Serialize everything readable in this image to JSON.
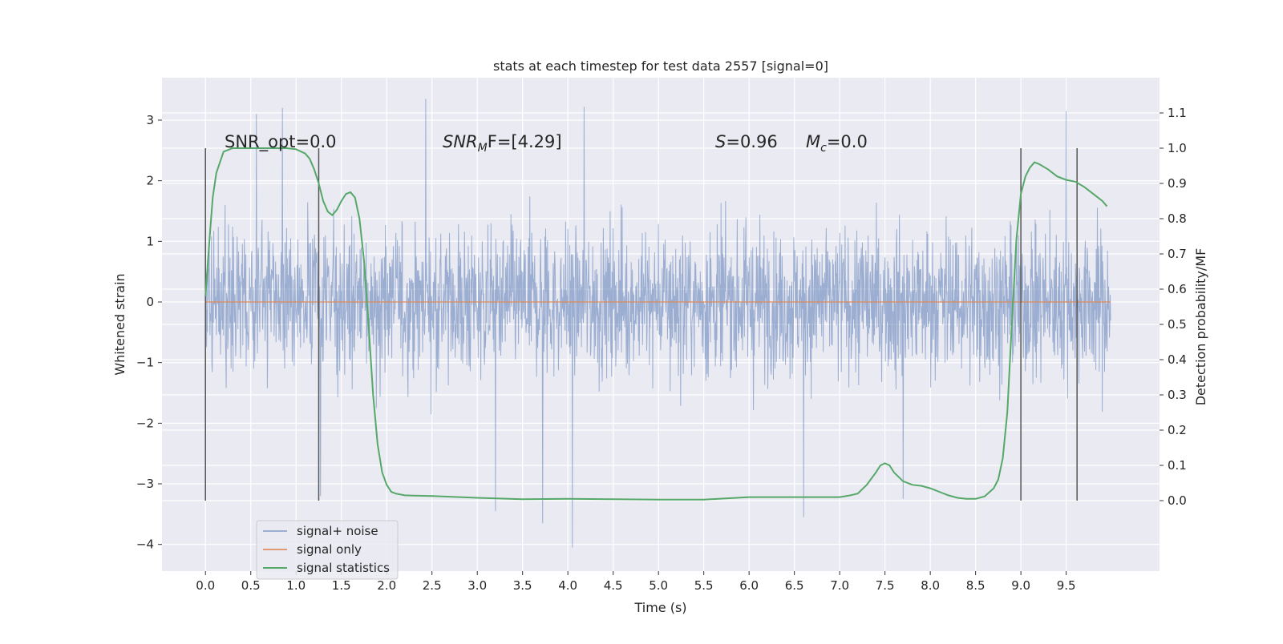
{
  "chart_data": {
    "type": "line",
    "title": "stats at each timestep for test data 2557 [signal=0]",
    "xlabel": "Time (s)",
    "ylabel_left": "Whitened strain",
    "ylabel_right": "Detection probability/MF",
    "xlim": [
      -0.48,
      10.53
    ],
    "ylim_left": [
      -4.44,
      3.7
    ],
    "ylim_right": [
      -0.2,
      1.2
    ],
    "xticks": [
      "0.0",
      "0.5",
      "1.0",
      "1.5",
      "2.0",
      "2.5",
      "3.0",
      "3.5",
      "4.0",
      "4.5",
      "5.0",
      "5.5",
      "6.0",
      "6.5",
      "7.0",
      "7.5",
      "8.0",
      "8.5",
      "9.0",
      "9.5"
    ],
    "yticks_left": [
      "3",
      "2",
      "1",
      "0",
      "−1",
      "−2",
      "−3",
      "−4"
    ],
    "yticks_right": [
      "1.1",
      "1.0",
      "0.9",
      "0.8",
      "0.7",
      "0.6",
      "0.5",
      "0.4",
      "0.3",
      "0.2",
      "0.1",
      "0.0"
    ],
    "grid": true,
    "legend_position": "lower-left",
    "colors": {
      "background": "#eaeaf2",
      "signal_noise": "#4c72b0",
      "signal_only": "#dd8452",
      "signal_statistics": "#55a868",
      "vlines": "#555555"
    },
    "series": [
      {
        "name": "signal+ noise",
        "description_range": [
          0.0,
          9.99
        ],
        "typical_band": [
          -1.4,
          1.4
        ],
        "extreme_max": 3.35,
        "extreme_min": -4.05,
        "spikes": [
          [
            0.56,
            3.1
          ],
          [
            0.85,
            3.2
          ],
          [
            2.43,
            3.35
          ],
          [
            4.18,
            3.22
          ],
          [
            9.5,
            3.15
          ],
          [
            3.2,
            -3.45
          ],
          [
            3.72,
            -3.65
          ],
          [
            4.05,
            -4.05
          ],
          [
            6.6,
            -3.55
          ],
          [
            1.27,
            -3.2
          ],
          [
            7.7,
            -3.25
          ]
        ]
      },
      {
        "name": "signal only",
        "x": [
          0.0,
          9.99
        ],
        "y": [
          0.0,
          0.0
        ]
      },
      {
        "name": "signal statistics",
        "axis": "right",
        "x": [
          0.0,
          0.05,
          0.08,
          0.12,
          0.2,
          0.3,
          0.5,
          0.7,
          0.9,
          1.0,
          1.1,
          1.15,
          1.2,
          1.25,
          1.3,
          1.35,
          1.4,
          1.45,
          1.5,
          1.55,
          1.6,
          1.65,
          1.7,
          1.75,
          1.8,
          1.85,
          1.9,
          1.95,
          2.0,
          2.05,
          2.1,
          2.2,
          2.3,
          2.5,
          3.0,
          3.5,
          4.0,
          4.5,
          5.0,
          5.5,
          6.0,
          6.5,
          7.0,
          7.1,
          7.2,
          7.3,
          7.4,
          7.45,
          7.5,
          7.55,
          7.6,
          7.7,
          7.8,
          7.9,
          8.0,
          8.1,
          8.2,
          8.3,
          8.4,
          8.5,
          8.6,
          8.7,
          8.75,
          8.8,
          8.85,
          8.9,
          8.95,
          9.0,
          9.05,
          9.1,
          9.15,
          9.2,
          9.3,
          9.4,
          9.5,
          9.6,
          9.7,
          9.8,
          9.9,
          9.95
        ],
        "y": [
          0.58,
          0.76,
          0.86,
          0.93,
          0.99,
          1.0,
          1.0,
          1.0,
          1.0,
          0.997,
          0.985,
          0.97,
          0.94,
          0.9,
          0.85,
          0.82,
          0.81,
          0.825,
          0.85,
          0.87,
          0.875,
          0.86,
          0.8,
          0.68,
          0.5,
          0.3,
          0.16,
          0.08,
          0.045,
          0.025,
          0.02,
          0.015,
          0.014,
          0.013,
          0.008,
          0.004,
          0.005,
          0.004,
          0.003,
          0.003,
          0.01,
          0.01,
          0.01,
          0.014,
          0.02,
          0.045,
          0.08,
          0.1,
          0.106,
          0.1,
          0.08,
          0.055,
          0.045,
          0.042,
          0.035,
          0.025,
          0.015,
          0.008,
          0.005,
          0.005,
          0.012,
          0.035,
          0.06,
          0.12,
          0.25,
          0.5,
          0.74,
          0.87,
          0.92,
          0.945,
          0.96,
          0.955,
          0.94,
          0.92,
          0.91,
          0.905,
          0.89,
          0.87,
          0.85,
          0.835
        ]
      }
    ],
    "vlines_x": [
      0.0,
      1.25,
      9.0,
      9.62
    ],
    "annotations": {
      "snr_opt": "SNR_opt=0.0",
      "snr_mf": "F=[4.29]",
      "s_stat": "=0.96",
      "mc": "=0.0"
    }
  }
}
